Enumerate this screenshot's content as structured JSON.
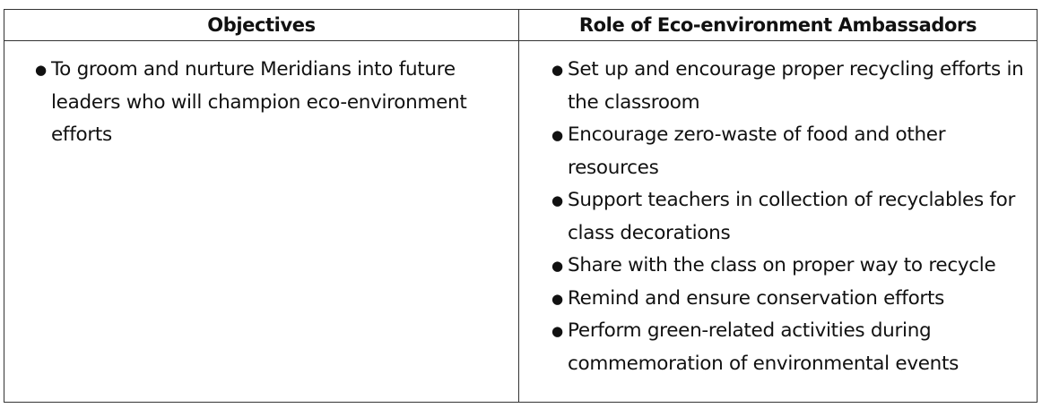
{
  "table": {
    "headers": {
      "objectives": "Objectives",
      "role": "Role of Eco-environment Ambassadors"
    },
    "objectives": [
      "To groom and nurture Meridians into future leaders who will champion eco-environment efforts"
    ],
    "roles": [
      "Set up and encourage proper recycling efforts in the classroom",
      "Encourage zero-waste of food and other resources",
      "Support teachers in collection of recyclables for class decorations",
      "Share with the class on proper way to recycle",
      "Remind and ensure conservation efforts",
      "Perform green-related activities during commemoration of environmental events"
    ],
    "bullet_symbol": "●"
  }
}
